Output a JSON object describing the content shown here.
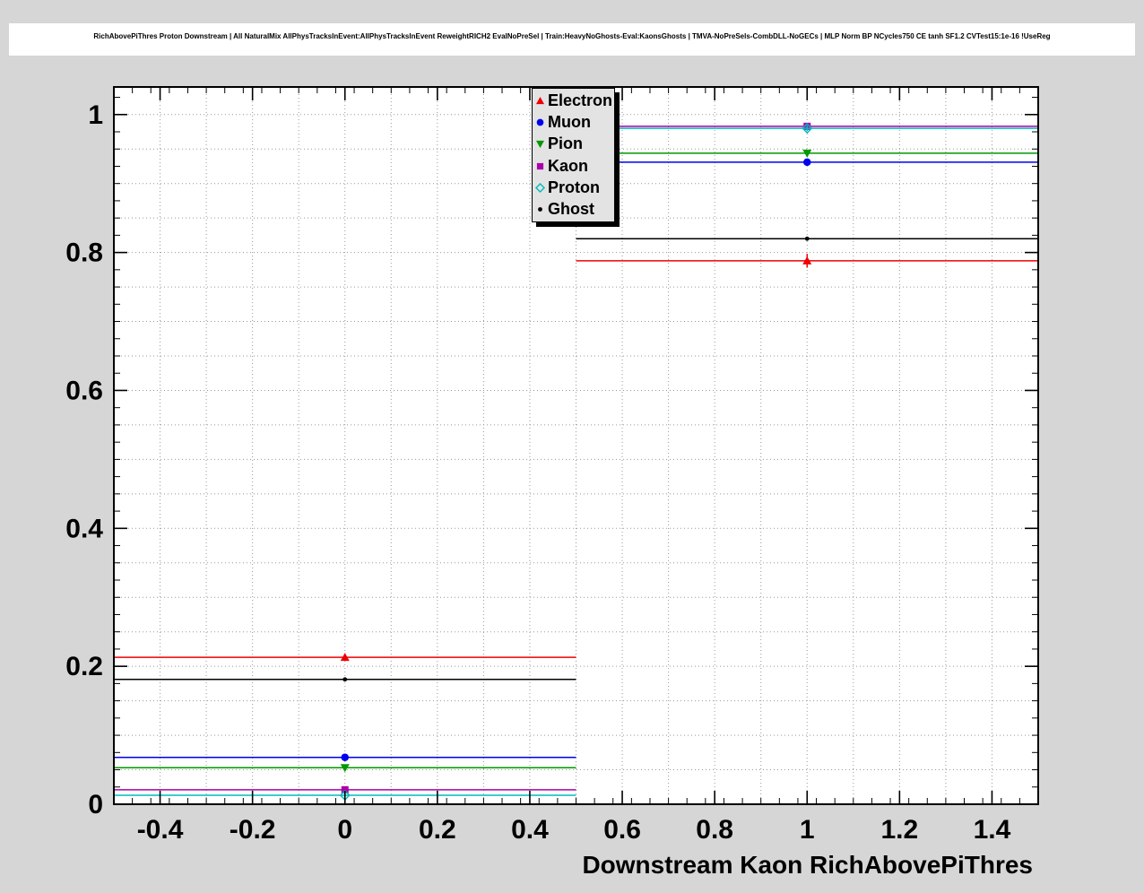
{
  "chart_data": {
    "type": "line",
    "title": "RichAbovePiThres Proton Downstream | All NaturalMix AllPhysTracksInEvent:AllPhysTracksInEvent ReweightRICH2 EvalNoPreSel | Train:HeavyNoGhosts-Eval:KaonsGhosts | TMVA-NoPreSels-CombDLL-NoGECs | MLP Norm BP NCycles750 CE tanh SF1.2 CVTest15:1e-16 !UseReg",
    "xlabel": "Downstream Kaon RichAbovePiThres",
    "ylabel": "",
    "xlim": [
      -0.5,
      1.5
    ],
    "ylim": [
      0,
      1.04
    ],
    "grid": {
      "x_step": 0.1,
      "y_step": 0.05,
      "style": "dotted",
      "color": "#999999"
    },
    "x_ticks": {
      "values": [
        -0.4,
        -0.2,
        0,
        0.2,
        0.4,
        0.6,
        0.8,
        1,
        1.2,
        1.4
      ],
      "labels": [
        "-0.4",
        "-0.2",
        "0",
        "0.2",
        "0.4",
        "0.6",
        "0.8",
        "1",
        "1.2",
        "1.4"
      ],
      "minor_step": 0.04
    },
    "y_ticks": {
      "values": [
        0,
        0.2,
        0.4,
        0.6,
        0.8,
        1
      ],
      "labels": [
        "0",
        "0.2",
        "0.4",
        "0.6",
        "0.8",
        "1"
      ],
      "minor_step": 0.025
    },
    "x": [
      0,
      1
    ],
    "bin_half_width": 0.5,
    "series": [
      {
        "name": "Electron",
        "color": "#ee0000",
        "marker": "triangle-up",
        "values": [
          0.213,
          0.788
        ],
        "yerr": [
          0.004,
          0.01
        ]
      },
      {
        "name": "Muon",
        "color": "#0000ee",
        "marker": "circle",
        "values": [
          0.068,
          0.931
        ],
        "yerr": [
          0.003,
          0.005
        ]
      },
      {
        "name": "Pion",
        "color": "#009900",
        "marker": "triangle-down",
        "values": [
          0.053,
          0.944
        ],
        "yerr": [
          0.003,
          0.004
        ]
      },
      {
        "name": "Kaon",
        "color": "#aa00aa",
        "marker": "square",
        "values": [
          0.021,
          0.983
        ],
        "yerr": [
          0.003,
          0.003
        ]
      },
      {
        "name": "Proton",
        "color": "#00bbbb",
        "marker": "diamond",
        "values": [
          0.013,
          0.98
        ],
        "yerr": [
          0.003,
          0.004
        ]
      },
      {
        "name": "Ghost",
        "color": "#000000",
        "marker": "dot",
        "values": [
          0.181,
          0.82
        ],
        "yerr": [
          0.002,
          0.003
        ]
      }
    ],
    "legend": {
      "entries": [
        "Electron",
        "Muon",
        "Pion",
        "Kaon",
        "Proton",
        "Ghost"
      ],
      "position": "top-center"
    }
  }
}
